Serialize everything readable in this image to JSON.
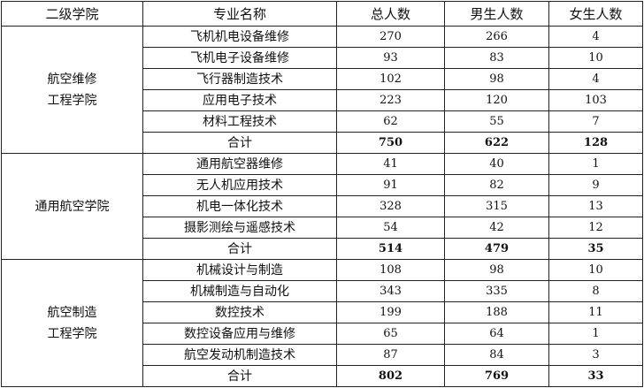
{
  "headers": [
    "二级学院",
    "专业名称",
    "总人数",
    "男生人数",
    "女生人数"
  ],
  "colleges": [
    {
      "name_lines": [
        "航空维修",
        "工程学院"
      ],
      "majors": [
        {
          "name": "飞机机电设备维修",
          "total": "270",
          "male": "266",
          "female": "4"
        },
        {
          "name": "飞机电子设备维修",
          "total": "93",
          "male": "83",
          "female": "10"
        },
        {
          "name": "飞行器制造技术",
          "total": "102",
          "male": "98",
          "female": "4"
        },
        {
          "name": "应用电子技术",
          "total": "223",
          "male": "120",
          "female": "103"
        },
        {
          "name": "材料工程技术",
          "total": "62",
          "male": "55",
          "female": "7"
        }
      ],
      "subtotal": {
        "name": "合计",
        "total": "750",
        "male": "622",
        "female": "128"
      }
    },
    {
      "name_lines": [
        "通用航空学院"
      ],
      "majors": [
        {
          "name": "通用航空器维修",
          "total": "41",
          "male": "40",
          "female": "1"
        },
        {
          "name": "无人机应用技术",
          "total": "91",
          "male": "82",
          "female": "9"
        },
        {
          "name": "机电一体化技术",
          "total": "328",
          "male": "315",
          "female": "13"
        },
        {
          "name": "摄影测绘与遥感技术",
          "total": "54",
          "male": "42",
          "female": "12"
        }
      ],
      "subtotal": {
        "name": "合计",
        "total": "514",
        "male": "479",
        "female": "35"
      }
    },
    {
      "name_lines": [
        "航空制造",
        "工程学院"
      ],
      "majors": [
        {
          "name": "机械设计与制造",
          "total": "108",
          "male": "98",
          "female": "10"
        },
        {
          "name": "机械制造与自动化",
          "total": "343",
          "male": "335",
          "female": "8"
        },
        {
          "name": "数控技术",
          "total": "199",
          "male": "188",
          "female": "11"
        },
        {
          "name": "数控设备应用与维修",
          "total": "65",
          "male": "64",
          "female": "1"
        },
        {
          "name": "航空发动机制造技术",
          "total": "87",
          "male": "84",
          "female": "3"
        }
      ],
      "subtotal": {
        "name": "合计",
        "total": "802",
        "male": "769",
        "female": "33"
      }
    }
  ]
}
